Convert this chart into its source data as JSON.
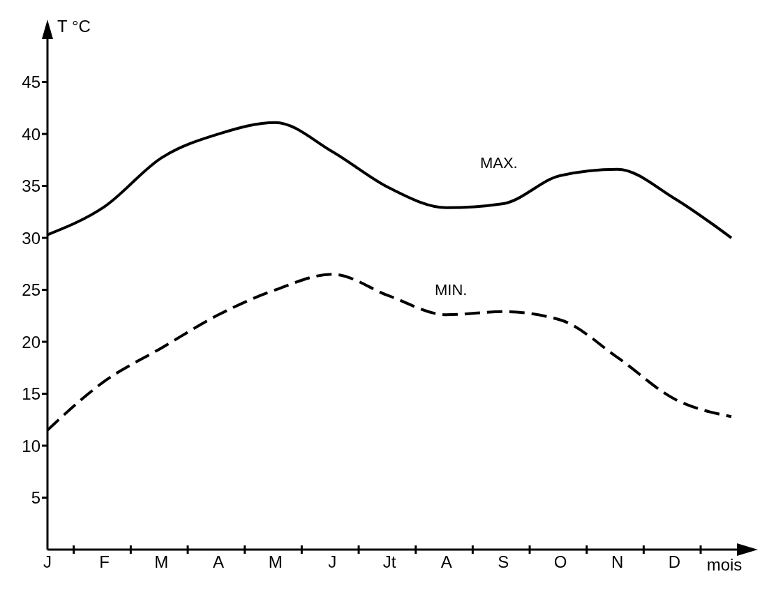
{
  "chart_data": {
    "type": "line",
    "ylabel": "T °C",
    "xlabel": "mois",
    "categories": [
      "J",
      "F",
      "M",
      "A",
      "M",
      "J",
      "Jt",
      "A",
      "S",
      "O",
      "N",
      "D",
      null
    ],
    "ylim": [
      0,
      49
    ],
    "yticks": [
      5,
      10,
      15,
      20,
      25,
      30,
      35,
      40,
      45
    ],
    "marker": "none",
    "series": [
      {
        "color": "#000000",
        "line_style": "solid",
        "values": [
          30.3,
          33,
          37.7,
          40,
          41.1,
          38.3,
          34.8,
          32.9,
          33.3,
          36,
          36.6,
          33.8,
          30
        ]
      },
      {
        "color": "#000000",
        "line_style": "dashed",
        "values": [
          11.5,
          16.2,
          19.4,
          22.6,
          25,
          26.5,
          24.4,
          22.6,
          22.9,
          22.1,
          18.5,
          14.5,
          12.8
        ]
      }
    ],
    "annotations": [
      "MAX.",
      "MIN."
    ]
  }
}
